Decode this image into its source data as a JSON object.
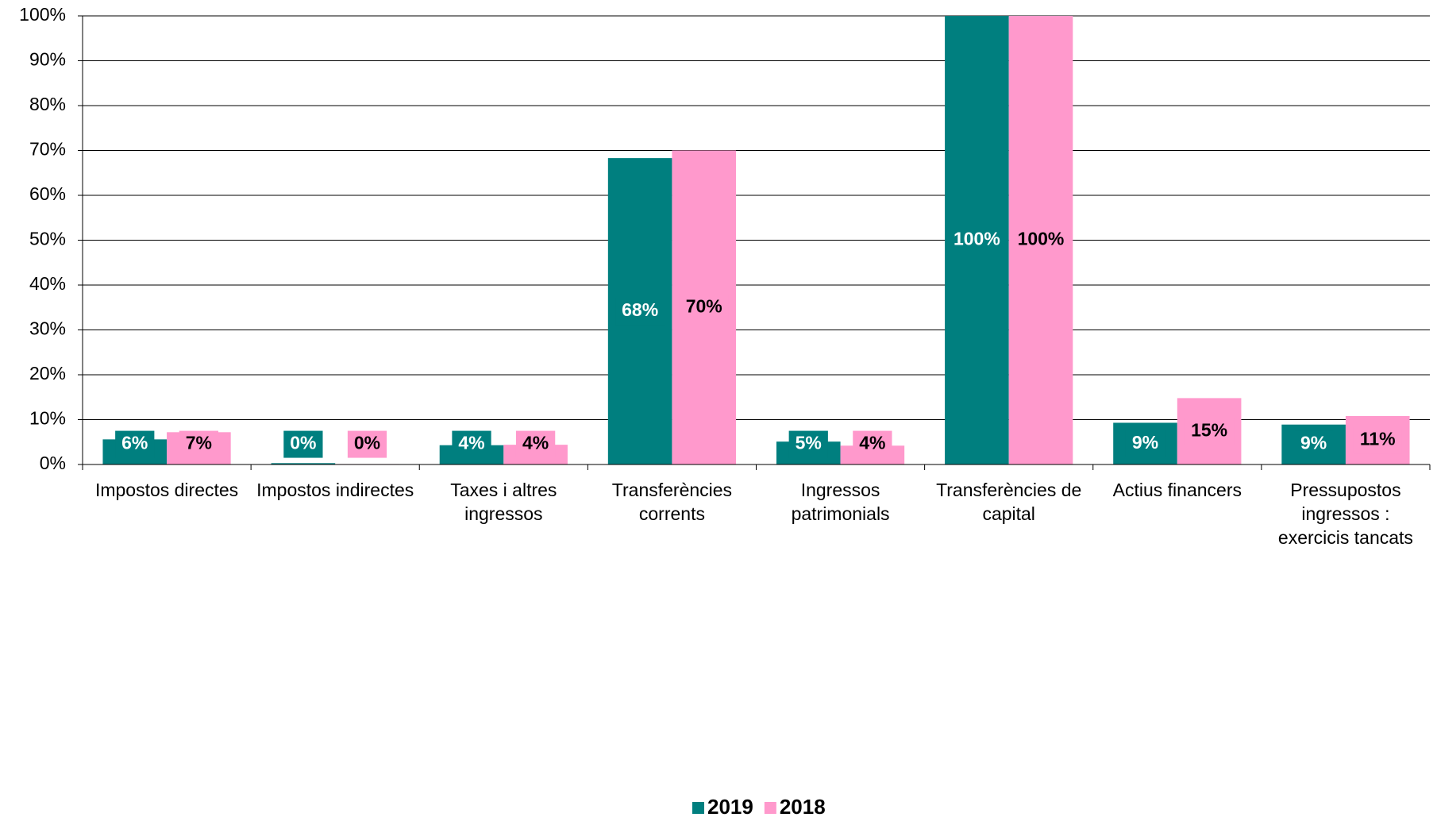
{
  "chart_data": {
    "type": "bar",
    "categories": [
      "Impostos directes",
      "Impostos indirectes",
      "Taxes i altres ingressos",
      "Transferències corrents",
      "Ingressos patrimonials",
      "Transferències de capital",
      "Actius financers",
      "Pressupostos ingressos : exercicis tancats"
    ],
    "series": [
      {
        "name": "2019",
        "color": "#007f7f",
        "values": [
          5.6,
          0.3,
          4.3,
          68.3,
          5.1,
          100,
          9.3,
          8.9
        ],
        "value_labels": [
          "6%",
          "0%",
          "4%",
          "68%",
          "5%",
          "100%",
          "9%",
          "9%"
        ]
      },
      {
        "name": "2018",
        "color": "#ff99cc",
        "values": [
          7.2,
          0.1,
          4.4,
          70,
          4.2,
          100,
          14.8,
          10.8
        ],
        "value_labels": [
          "7%",
          "0%",
          "4%",
          "70%",
          "4%",
          "100%",
          "15%",
          "11%"
        ]
      }
    ],
    "ylim": [
      0,
      100
    ],
    "yticks": [
      {
        "value": 0,
        "label": "0%"
      },
      {
        "value": 10,
        "label": "10%"
      },
      {
        "value": 20,
        "label": "20%"
      },
      {
        "value": 30,
        "label": "30%"
      },
      {
        "value": 40,
        "label": "40%"
      },
      {
        "value": 50,
        "label": "50%"
      },
      {
        "value": 60,
        "label": "60%"
      },
      {
        "value": 70,
        "label": "70%"
      },
      {
        "value": 80,
        "label": "80%"
      },
      {
        "value": 90,
        "label": "90%"
      },
      {
        "value": 100,
        "label": "100%"
      }
    ],
    "grid": true,
    "legend": "bottom"
  }
}
